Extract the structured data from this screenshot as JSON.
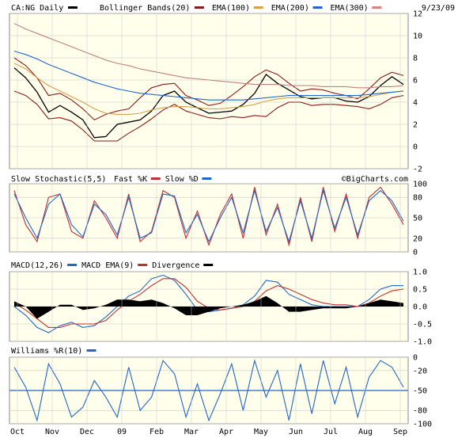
{
  "header": {
    "symbol_label": "CA:NG Daily",
    "date": "9/23/09",
    "legend": [
      {
        "label": "Bollinger Bands(20)",
        "color": "#8b1a1a"
      },
      {
        "label": "EMA(100)",
        "color": "#d4a04a"
      },
      {
        "label": "EMA(200)",
        "color": "#2166c8"
      },
      {
        "label": "EMA(300)",
        "color": "#d98080"
      }
    ]
  },
  "watermark": "©BigCharts.com",
  "colors": {
    "panel_bg": "#ffffec",
    "grid": "#c8c8c8",
    "price": "#000000",
    "bollinger": "#8b1a1a",
    "ema100": "#d4a04a",
    "ema200": "#2166c8",
    "ema300": "#c08080",
    "fast_k": "#c03030",
    "slow_d": "#2166c8",
    "macd": "#2166c8",
    "macd_ema": "#c03030",
    "divergence": "#000000",
    "williams": "#2166c8"
  },
  "chart_data": [
    {
      "type": "line",
      "panel": "price",
      "title": "CA:NG Daily",
      "y_ticks": [
        "12",
        "10",
        "8",
        "6",
        "4",
        "2",
        "0",
        "-2"
      ],
      "ylim": [
        -2,
        12
      ],
      "x_labels": [
        "Oct",
        "Nov",
        "Dec",
        "09",
        "Feb",
        "Mar",
        "Apr",
        "May",
        "Jun",
        "Jul",
        "Aug",
        "Sep"
      ],
      "series": [
        {
          "name": "CA:NG Daily",
          "key": "price",
          "values": [
            7.1,
            6.2,
            4.9,
            3.1,
            3.7,
            3.1,
            2.4,
            0.8,
            0.9,
            2.0,
            2.2,
            2.4,
            3.2,
            4.6,
            5.0,
            4.0,
            3.5,
            3.0,
            3.1,
            3.2,
            3.8,
            4.8,
            6.5,
            5.7,
            5.1,
            4.5,
            4.3,
            4.4,
            4.4,
            4.1,
            4.0,
            4.5,
            5.5,
            6.3,
            5.6
          ]
        },
        {
          "name": "Bollinger Bands(20)",
          "key": "bb_upper",
          "values": [
            8.0,
            7.3,
            6.2,
            4.6,
            4.8,
            4.2,
            3.4,
            2.4,
            2.9,
            3.2,
            3.4,
            4.4,
            5.3,
            5.6,
            5.7,
            4.6,
            4.2,
            3.7,
            3.9,
            4.6,
            5.4,
            6.3,
            6.9,
            6.5,
            5.7,
            5.0,
            5.2,
            5.1,
            4.8,
            4.6,
            4.3,
            5.2,
            6.2,
            6.7,
            6.4
          ]
        },
        {
          "name": "Bollinger Bands(20)",
          "key": "bb_lower",
          "values": [
            5.0,
            4.6,
            3.8,
            2.5,
            2.6,
            2.3,
            1.5,
            0.5,
            0.5,
            0.5,
            1.2,
            1.8,
            2.5,
            3.3,
            3.8,
            3.2,
            2.9,
            2.6,
            2.5,
            2.7,
            2.6,
            2.8,
            2.7,
            3.5,
            4.0,
            4.0,
            3.7,
            3.8,
            3.8,
            3.7,
            3.6,
            3.4,
            3.8,
            4.4,
            4.6
          ]
        },
        {
          "name": "EMA(100)",
          "key": "ema100",
          "values": [
            7.5,
            7.0,
            6.2,
            5.5,
            5.0,
            4.5,
            4.0,
            3.4,
            3.0,
            2.9,
            2.9,
            3.0,
            3.3,
            3.5,
            3.6,
            3.6,
            3.5,
            3.4,
            3.4,
            3.5,
            3.6,
            3.8,
            4.1,
            4.3,
            4.4,
            4.4,
            4.4,
            4.4,
            4.4,
            4.4,
            4.4,
            4.5,
            4.7,
            4.9,
            5.0
          ]
        },
        {
          "name": "EMA(200)",
          "key": "ema200",
          "values": [
            8.6,
            8.3,
            7.9,
            7.4,
            7.0,
            6.6,
            6.2,
            5.8,
            5.5,
            5.2,
            5.0,
            4.8,
            4.7,
            4.6,
            4.5,
            4.4,
            4.3,
            4.2,
            4.2,
            4.2,
            4.2,
            4.3,
            4.4,
            4.5,
            4.6,
            4.6,
            4.6,
            4.6,
            4.6,
            4.6,
            4.6,
            4.7,
            4.8,
            4.9,
            5.0
          ]
        },
        {
          "name": "EMA(300)",
          "key": "ema300",
          "values": [
            11.1,
            10.6,
            10.2,
            9.8,
            9.4,
            9.0,
            8.6,
            8.2,
            7.8,
            7.5,
            7.3,
            7.0,
            6.8,
            6.6,
            6.4,
            6.2,
            6.1,
            6.0,
            5.9,
            5.8,
            5.7,
            5.6,
            5.6,
            5.6,
            5.5,
            5.5,
            5.5,
            5.4,
            5.4,
            5.4,
            5.3,
            5.3,
            5.4,
            5.4,
            5.5
          ]
        }
      ]
    },
    {
      "type": "line",
      "panel": "stochastic",
      "title": "Slow Stochastic(5,5)",
      "y_ticks": [
        "100",
        "80",
        "50",
        "20",
        "0"
      ],
      "ylim": [
        0,
        100
      ],
      "series": [
        {
          "name": "Fast %K",
          "key": "k",
          "values": [
            90,
            40,
            15,
            80,
            85,
            30,
            20,
            75,
            50,
            20,
            85,
            15,
            30,
            90,
            80,
            20,
            60,
            10,
            55,
            85,
            20,
            95,
            25,
            70,
            10,
            80,
            15,
            95,
            30,
            85,
            20,
            80,
            95,
            70,
            40
          ]
        },
        {
          "name": "Slow %D",
          "key": "d",
          "values": [
            85,
            50,
            20,
            70,
            85,
            40,
            22,
            70,
            55,
            25,
            80,
            20,
            28,
            85,
            82,
            28,
            55,
            15,
            50,
            80,
            28,
            90,
            30,
            65,
            15,
            75,
            20,
            90,
            35,
            80,
            25,
            75,
            90,
            75,
            45
          ]
        }
      ]
    },
    {
      "type": "line",
      "panel": "macd",
      "title": "MACD(12,26)",
      "y_ticks": [
        "1.0",
        "0.5",
        "0.0",
        "-0.5",
        "-1.0"
      ],
      "ylim": [
        -1.0,
        1.0
      ],
      "series": [
        {
          "name": "MACD(12,26)",
          "key": "macd",
          "values": [
            0.0,
            -0.25,
            -0.6,
            -0.75,
            -0.55,
            -0.45,
            -0.6,
            -0.55,
            -0.3,
            0.0,
            0.3,
            0.45,
            0.8,
            0.9,
            0.75,
            0.35,
            -0.1,
            -0.15,
            -0.1,
            -0.05,
            0.05,
            0.3,
            0.75,
            0.7,
            0.35,
            0.2,
            0.05,
            0.0,
            0.0,
            0.0,
            0.0,
            0.2,
            0.5,
            0.6,
            0.6
          ]
        },
        {
          "name": "MACD EMA(9)",
          "key": "signal",
          "values": [
            0.1,
            -0.1,
            -0.35,
            -0.6,
            -0.6,
            -0.5,
            -0.5,
            -0.5,
            -0.4,
            -0.1,
            0.15,
            0.35,
            0.6,
            0.8,
            0.8,
            0.55,
            0.15,
            -0.05,
            -0.1,
            -0.05,
            0.0,
            0.15,
            0.45,
            0.6,
            0.5,
            0.35,
            0.2,
            0.1,
            0.05,
            0.05,
            0.0,
            0.1,
            0.3,
            0.45,
            0.5
          ]
        },
        {
          "name": "Divergence",
          "key": "divergence",
          "values": [
            0.15,
            0.0,
            -0.35,
            -0.15,
            0.05,
            0.05,
            -0.1,
            -0.05,
            0.05,
            0.2,
            0.2,
            0.15,
            0.2,
            0.1,
            -0.05,
            -0.25,
            -0.25,
            -0.15,
            -0.05,
            0.0,
            0.05,
            0.15,
            0.3,
            0.1,
            -0.15,
            -0.15,
            -0.1,
            -0.05,
            -0.05,
            -0.05,
            0.0,
            0.1,
            0.2,
            0.15,
            0.1
          ]
        }
      ]
    },
    {
      "type": "line",
      "panel": "williams",
      "title": "Williams %R(10)",
      "y_ticks": [
        "0",
        "-20",
        "-50",
        "-80",
        "-100"
      ],
      "ylim": [
        -100,
        0
      ],
      "series": [
        {
          "name": "Williams %R(10)",
          "key": "wr",
          "values": [
            -15,
            -45,
            -95,
            -10,
            -40,
            -90,
            -75,
            -35,
            -60,
            -90,
            -15,
            -80,
            -60,
            -5,
            -25,
            -90,
            -40,
            -95,
            -55,
            -10,
            -80,
            -5,
            -60,
            -20,
            -95,
            -10,
            -85,
            -5,
            -70,
            -15,
            -90,
            -30,
            -5,
            -15,
            -45
          ]
        }
      ]
    }
  ],
  "panels_labels": {
    "stochastic_legend": [
      {
        "label": "Slow Stochastic(5,5)",
        "color": null
      },
      {
        "label": "Fast %K",
        "color": "#c03030"
      },
      {
        "label": "Slow %D",
        "color": "#2166c8"
      }
    ],
    "macd_legend": [
      {
        "label": "MACD(12,26)",
        "color": "#2166c8"
      },
      {
        "label": "MACD EMA(9)",
        "color": "#c03030"
      },
      {
        "label": "Divergence",
        "color": "#000000"
      }
    ],
    "williams_legend": [
      {
        "label": "Williams %R(10)",
        "color": "#2166c8"
      }
    ]
  }
}
